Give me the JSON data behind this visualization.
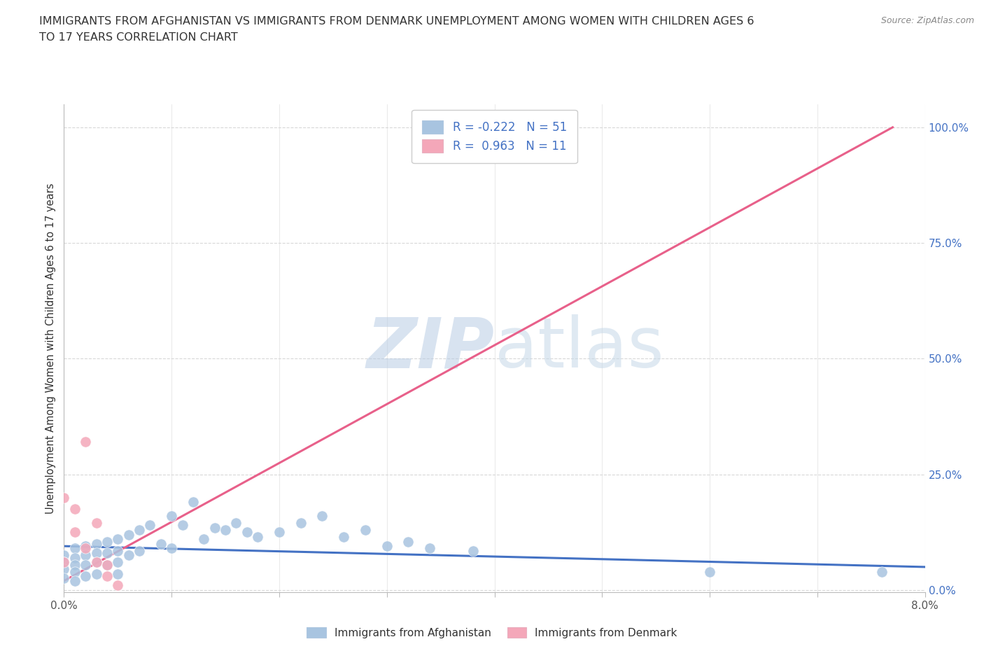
{
  "title_line1": "IMMIGRANTS FROM AFGHANISTAN VS IMMIGRANTS FROM DENMARK UNEMPLOYMENT AMONG WOMEN WITH CHILDREN AGES 6",
  "title_line2": "TO 17 YEARS CORRELATION CHART",
  "source": "Source: ZipAtlas.com",
  "ylabel": "Unemployment Among Women with Children Ages 6 to 17 years",
  "xlim": [
    0.0,
    0.08
  ],
  "ylim": [
    -0.005,
    1.05
  ],
  "afghanistan_R": -0.222,
  "afghanistan_N": 51,
  "denmark_R": 0.963,
  "denmark_N": 11,
  "afghanistan_color": "#a8c4e0",
  "denmark_color": "#f4a7b9",
  "afghanistan_line_color": "#4472c4",
  "denmark_line_color": "#e8608a",
  "watermark_color": "#ccd9ed",
  "background_color": "#ffffff",
  "grid_color": "#d8d8d8",
  "label_color_blue": "#4472c4",
  "title_color": "#333333",
  "source_color": "#888888",
  "ytick_vals": [
    0.0,
    0.25,
    0.5,
    0.75,
    1.0
  ],
  "ytick_labels": [
    "0.0%",
    "25.0%",
    "50.0%",
    "75.0%",
    "100.0%"
  ],
  "xtick_vals": [
    0.0,
    0.01,
    0.02,
    0.03,
    0.04,
    0.05,
    0.06,
    0.07,
    0.08
  ],
  "xtick_labels": [
    "0.0%",
    "",
    "",
    "",
    "",
    "",
    "",
    "",
    "8.0%"
  ],
  "afg_x": [
    0.0,
    0.0,
    0.0,
    0.0,
    0.001,
    0.001,
    0.001,
    0.001,
    0.001,
    0.002,
    0.002,
    0.002,
    0.002,
    0.003,
    0.003,
    0.003,
    0.003,
    0.004,
    0.004,
    0.004,
    0.005,
    0.005,
    0.005,
    0.005,
    0.006,
    0.006,
    0.007,
    0.007,
    0.008,
    0.009,
    0.01,
    0.01,
    0.011,
    0.012,
    0.013,
    0.014,
    0.015,
    0.016,
    0.017,
    0.018,
    0.02,
    0.022,
    0.024,
    0.026,
    0.028,
    0.03,
    0.032,
    0.034,
    0.038,
    0.06,
    0.076
  ],
  "afg_y": [
    0.075,
    0.06,
    0.045,
    0.025,
    0.09,
    0.07,
    0.055,
    0.04,
    0.02,
    0.095,
    0.075,
    0.055,
    0.03,
    0.1,
    0.08,
    0.06,
    0.035,
    0.105,
    0.08,
    0.055,
    0.11,
    0.085,
    0.06,
    0.035,
    0.12,
    0.075,
    0.13,
    0.085,
    0.14,
    0.1,
    0.16,
    0.09,
    0.14,
    0.19,
    0.11,
    0.135,
    0.13,
    0.145,
    0.125,
    0.115,
    0.125,
    0.145,
    0.16,
    0.115,
    0.13,
    0.095,
    0.105,
    0.09,
    0.085,
    0.04,
    0.04
  ],
  "dnk_x": [
    0.0,
    0.0,
    0.001,
    0.001,
    0.002,
    0.002,
    0.003,
    0.003,
    0.004,
    0.004,
    0.005
  ],
  "dnk_y": [
    0.2,
    0.06,
    0.175,
    0.125,
    0.32,
    0.09,
    0.145,
    0.06,
    0.055,
    0.03,
    0.01
  ],
  "afg_line_x": [
    0.0,
    0.08
  ],
  "afg_line_y": [
    0.095,
    0.05
  ],
  "dnk_line_x": [
    0.0,
    0.077
  ],
  "dnk_line_y": [
    0.02,
    1.0
  ]
}
